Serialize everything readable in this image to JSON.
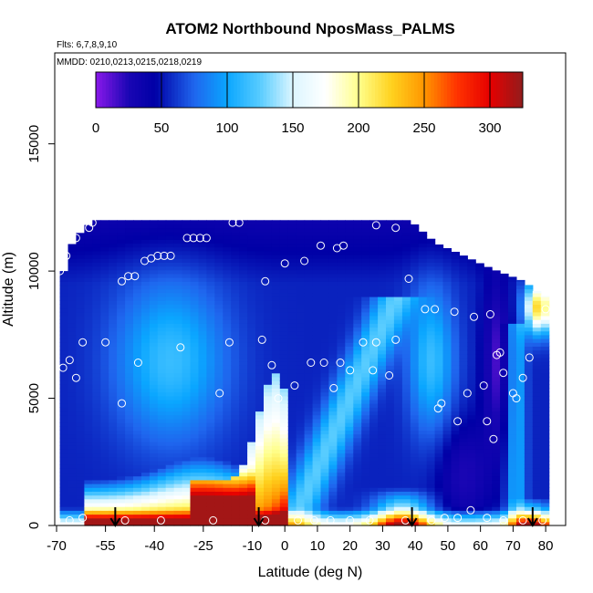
{
  "chart_data": {
    "type": "heatmap",
    "title": "ATOM2 Northbound NposMass_PALMS",
    "subtitle_flights": "Flts: 6,7,8,9,10",
    "subtitle_dates": "MMDD: 0210,0213,0215,0218,0219",
    "xlabel": "Latitude (deg N)",
    "ylabel": "Altitude (m)",
    "xlim": [
      -70,
      85
    ],
    "ylim": [
      0,
      18000
    ],
    "x_ticks": [
      -70,
      -55,
      -40,
      -25,
      -10,
      0,
      10,
      20,
      30,
      40,
      50,
      60,
      70,
      80
    ],
    "y_ticks": [
      0,
      5000,
      10000,
      15000
    ],
    "colorbar": {
      "range": [
        0,
        325
      ],
      "ticks": [
        0,
        50,
        100,
        150,
        200,
        250,
        300
      ],
      "colors": [
        {
          "v": 0,
          "c": "#8a19ea"
        },
        {
          "v": 25,
          "c": "#1a06b4"
        },
        {
          "v": 45,
          "c": "#0000a6"
        },
        {
          "v": 75,
          "c": "#1f66ee"
        },
        {
          "v": 100,
          "c": "#0aa6ff"
        },
        {
          "v": 125,
          "c": "#58ccff"
        },
        {
          "v": 150,
          "c": "#dcf6ff"
        },
        {
          "v": 175,
          "c": "#ffffff"
        },
        {
          "v": 200,
          "c": "#ffff8c"
        },
        {
          "v": 225,
          "c": "#ffd21e"
        },
        {
          "v": 250,
          "c": "#ff9600"
        },
        {
          "v": 275,
          "c": "#ff3200"
        },
        {
          "v": 300,
          "c": "#e60000"
        },
        {
          "v": 325,
          "c": "#921c1c"
        }
      ]
    },
    "arrows_latitude": [
      -52,
      -8,
      39,
      76
    ],
    "measurement_points": [
      {
        "lat": -69,
        "alt": 10000
      },
      {
        "lat": -67,
        "alt": 10600
      },
      {
        "lat": -64,
        "alt": 11300
      },
      {
        "lat": -60,
        "alt": 11700
      },
      {
        "lat": -59,
        "alt": 11900
      },
      {
        "lat": -50,
        "alt": 9600
      },
      {
        "lat": -48,
        "alt": 9800
      },
      {
        "lat": -46,
        "alt": 9800
      },
      {
        "lat": -43,
        "alt": 10400
      },
      {
        "lat": -41,
        "alt": 10500
      },
      {
        "lat": -39,
        "alt": 10600
      },
      {
        "lat": -37,
        "alt": 10600
      },
      {
        "lat": -35,
        "alt": 10600
      },
      {
        "lat": -30,
        "alt": 11300
      },
      {
        "lat": -28,
        "alt": 11300
      },
      {
        "lat": -26,
        "alt": 11300
      },
      {
        "lat": -24,
        "alt": 11300
      },
      {
        "lat": -16,
        "alt": 11900
      },
      {
        "lat": -14,
        "alt": 11900
      },
      {
        "lat": -6,
        "alt": 9600
      },
      {
        "lat": 0,
        "alt": 10300
      },
      {
        "lat": 6,
        "alt": 10400
      },
      {
        "lat": 11,
        "alt": 11000
      },
      {
        "lat": 16,
        "alt": 10900
      },
      {
        "lat": 18,
        "alt": 11000
      },
      {
        "lat": 28,
        "alt": 11800
      },
      {
        "lat": 34,
        "alt": 11700
      },
      {
        "lat": 38,
        "alt": 9700
      },
      {
        "lat": 43,
        "alt": 8500
      },
      {
        "lat": 46,
        "alt": 8500
      },
      {
        "lat": 52,
        "alt": 8400
      },
      {
        "lat": 58,
        "alt": 8200
      },
      {
        "lat": 63,
        "alt": 8300
      },
      {
        "lat": 80,
        "alt": 8500
      },
      {
        "lat": -68,
        "alt": 6200
      },
      {
        "lat": -66,
        "alt": 6500
      },
      {
        "lat": -64,
        "alt": 5800
      },
      {
        "lat": -62,
        "alt": 7200
      },
      {
        "lat": -55,
        "alt": 7200
      },
      {
        "lat": -45,
        "alt": 6400
      },
      {
        "lat": -32,
        "alt": 7000
      },
      {
        "lat": -17,
        "alt": 7200
      },
      {
        "lat": -7,
        "alt": 7300
      },
      {
        "lat": -4,
        "alt": 6300
      },
      {
        "lat": -2,
        "alt": 5000
      },
      {
        "lat": 3,
        "alt": 5500
      },
      {
        "lat": 8,
        "alt": 6400
      },
      {
        "lat": 12,
        "alt": 6400
      },
      {
        "lat": 15,
        "alt": 5400
      },
      {
        "lat": 17,
        "alt": 6400
      },
      {
        "lat": 20,
        "alt": 6100
      },
      {
        "lat": 24,
        "alt": 7200
      },
      {
        "lat": 27,
        "alt": 6100
      },
      {
        "lat": 28,
        "alt": 7200
      },
      {
        "lat": 32,
        "alt": 5900
      },
      {
        "lat": 34,
        "alt": 7300
      },
      {
        "lat": 47,
        "alt": 4600
      },
      {
        "lat": 48,
        "alt": 4800
      },
      {
        "lat": 53,
        "alt": 4100
      },
      {
        "lat": 56,
        "alt": 5200
      },
      {
        "lat": 61,
        "alt": 5500
      },
      {
        "lat": 62,
        "alt": 4100
      },
      {
        "lat": 64,
        "alt": 3400
      },
      {
        "lat": 65,
        "alt": 6700
      },
      {
        "lat": 66,
        "alt": 6800
      },
      {
        "lat": 67,
        "alt": 6000
      },
      {
        "lat": 70,
        "alt": 5200
      },
      {
        "lat": 71,
        "alt": 5000
      },
      {
        "lat": 73,
        "alt": 5800
      },
      {
        "lat": 75,
        "alt": 6600
      },
      {
        "lat": -50,
        "alt": 4800
      },
      {
        "lat": -20,
        "alt": 5200
      },
      {
        "lat": -70,
        "alt": 200
      },
      {
        "lat": -66,
        "alt": 200
      },
      {
        "lat": -62,
        "alt": 300
      },
      {
        "lat": -49,
        "alt": 200
      },
      {
        "lat": -38,
        "alt": 200
      },
      {
        "lat": -22,
        "alt": 200
      },
      {
        "lat": -6,
        "alt": 200
      },
      {
        "lat": 4,
        "alt": 200
      },
      {
        "lat": 9,
        "alt": 200
      },
      {
        "lat": 14,
        "alt": 200
      },
      {
        "lat": 20,
        "alt": 200
      },
      {
        "lat": 26,
        "alt": 200
      },
      {
        "lat": 37,
        "alt": 200
      },
      {
        "lat": 45,
        "alt": 200
      },
      {
        "lat": 49,
        "alt": 300
      },
      {
        "lat": 53,
        "alt": 300
      },
      {
        "lat": 57,
        "alt": 600
      },
      {
        "lat": 62,
        "alt": 300
      },
      {
        "lat": 67,
        "alt": 200
      },
      {
        "lat": 73,
        "alt": 200
      },
      {
        "lat": 79,
        "alt": 200
      }
    ],
    "field": {
      "description_note": "Gridded model of the colored curtain; values in same units as colorbar",
      "top_alt": [
        {
          "lat": -70,
          "alt": 9200
        },
        {
          "lat": -68,
          "alt": 10800
        },
        {
          "lat": -64,
          "alt": 11500
        },
        {
          "lat": -60,
          "alt": 12000
        },
        {
          "lat": 37,
          "alt": 12000
        },
        {
          "lat": 45,
          "alt": 11100
        },
        {
          "lat": 52,
          "alt": 10700
        },
        {
          "lat": 62,
          "alt": 10100
        },
        {
          "lat": 72,
          "alt": 9600
        },
        {
          "lat": 75,
          "alt": 9300
        },
        {
          "lat": 80,
          "alt": 8900
        }
      ]
    }
  }
}
